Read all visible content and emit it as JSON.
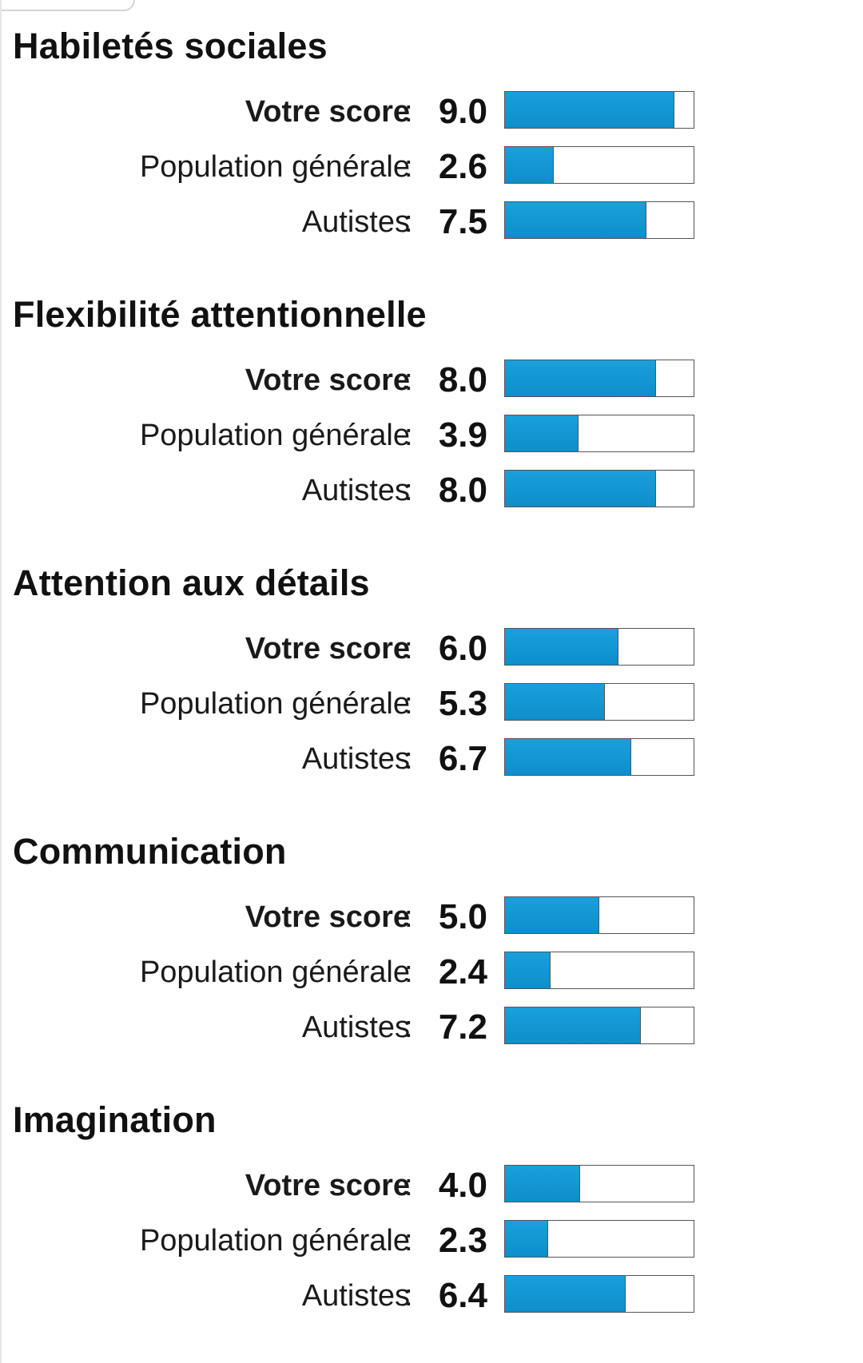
{
  "scale_max": 10,
  "colors": {
    "bar_fill": "#0e8ecb",
    "bar_border": "#555555",
    "text": "#111111",
    "background": "#ffffff"
  },
  "sections": [
    {
      "title": "Habiletés sociales",
      "rows": [
        {
          "label": "Votre score",
          "value": "9.0",
          "score": 9.0,
          "emphasis": true
        },
        {
          "label": "Population générale",
          "value": "2.6",
          "score": 2.6,
          "emphasis": false
        },
        {
          "label": "Autistes",
          "value": "7.5",
          "score": 7.5,
          "emphasis": false
        }
      ]
    },
    {
      "title": "Flexibilité attentionnelle",
      "rows": [
        {
          "label": "Votre score",
          "value": "8.0",
          "score": 8.0,
          "emphasis": true
        },
        {
          "label": "Population générale",
          "value": "3.9",
          "score": 3.9,
          "emphasis": false
        },
        {
          "label": "Autistes",
          "value": "8.0",
          "score": 8.0,
          "emphasis": false
        }
      ]
    },
    {
      "title": "Attention aux détails",
      "rows": [
        {
          "label": "Votre score",
          "value": "6.0",
          "score": 6.0,
          "emphasis": true
        },
        {
          "label": "Population générale",
          "value": "5.3",
          "score": 5.3,
          "emphasis": false
        },
        {
          "label": "Autistes",
          "value": "6.7",
          "score": 6.7,
          "emphasis": false
        }
      ]
    },
    {
      "title": "Communication",
      "rows": [
        {
          "label": "Votre score",
          "value": "5.0",
          "score": 5.0,
          "emphasis": true
        },
        {
          "label": "Population générale",
          "value": "2.4",
          "score": 2.4,
          "emphasis": false
        },
        {
          "label": "Autistes",
          "value": "7.2",
          "score": 7.2,
          "emphasis": false
        }
      ]
    },
    {
      "title": "Imagination",
      "rows": [
        {
          "label": "Votre score",
          "value": "4.0",
          "score": 4.0,
          "emphasis": true
        },
        {
          "label": "Population générale",
          "value": "2.3",
          "score": 2.3,
          "emphasis": false
        },
        {
          "label": "Autistes",
          "value": "6.4",
          "score": 6.4,
          "emphasis": false
        }
      ]
    }
  ]
}
